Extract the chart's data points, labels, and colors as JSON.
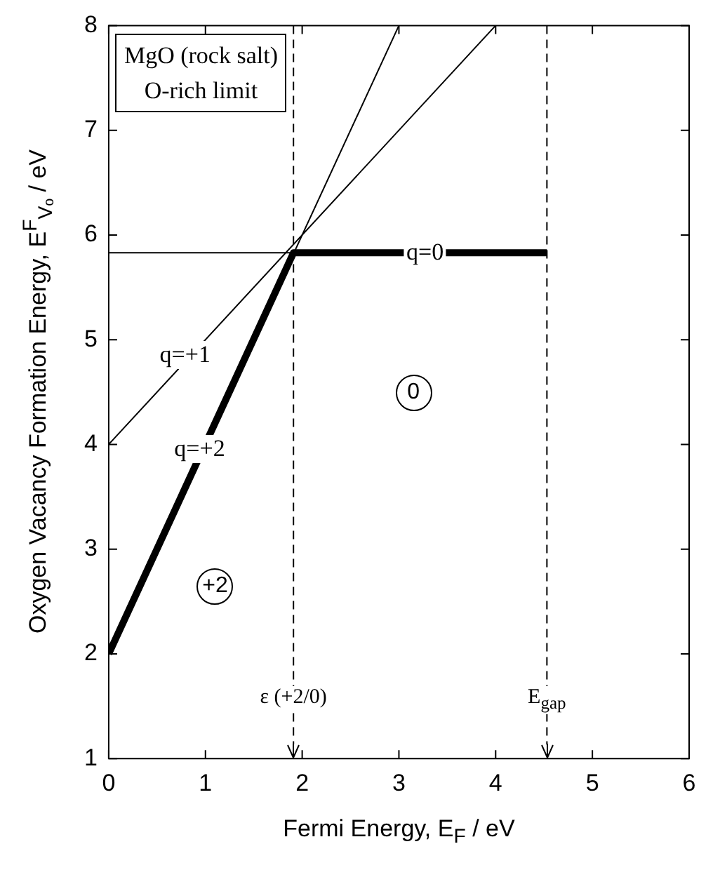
{
  "chart_data": {
    "type": "line",
    "xlabel": "Fermi Energy, E$_{F}$  / eV",
    "ylabel": "Oxygen Vacancy Formation Energy,  E$^{F}$$_{Vₒ}$ / eV",
    "xlim": [
      0,
      6
    ],
    "xticks": [
      0,
      1,
      2,
      3,
      4,
      5,
      6
    ],
    "ylim": [
      1,
      8
    ],
    "yticks": [
      1,
      2,
      3,
      4,
      5,
      6,
      7,
      8
    ],
    "series": [
      {
        "color": "#000000",
        "x": [
          0,
          3
        ],
        "values": [
          2,
          8
        ]
      },
      {
        "color": "#000000",
        "x": [
          0,
          4
        ],
        "values": [
          4,
          8
        ]
      },
      {
        "color": "#000000",
        "x": [
          0,
          1.91
        ],
        "values": [
          5.83,
          5.83
        ]
      },
      {
        "color": "#000000",
        "x": [
          0,
          1.91,
          4.53
        ],
        "values": [
          2,
          5.83,
          5.83
        ]
      }
    ],
    "marker": "none",
    "legend": false,
    "ref_lines": [
      {
        "axis": "x",
        "value": 1.91,
        "label": "ε (+2/0)",
        "line_style": "dashed",
        "color": "#000000"
      },
      {
        "axis": "x",
        "value": 4.53,
        "label": "E$_{gap}$",
        "line_style": "dashed",
        "color": "#000000"
      }
    ],
    "annotations": [
      "MgO (rock salt)",
      "O-rich limit",
      {
        "text": "q=+1",
        "x": 0.79,
        "y": 4.86
      },
      {
        "text": "q=+2",
        "x": 0.94,
        "y": 3.96
      },
      {
        "text": "q=0",
        "x": 3.27,
        "y": 5.83
      },
      {
        "text": "+2",
        "x": 1.1,
        "y": 2.64
      },
      {
        "text": "0",
        "x": 3.15,
        "y": 4.49
      }
    ]
  }
}
